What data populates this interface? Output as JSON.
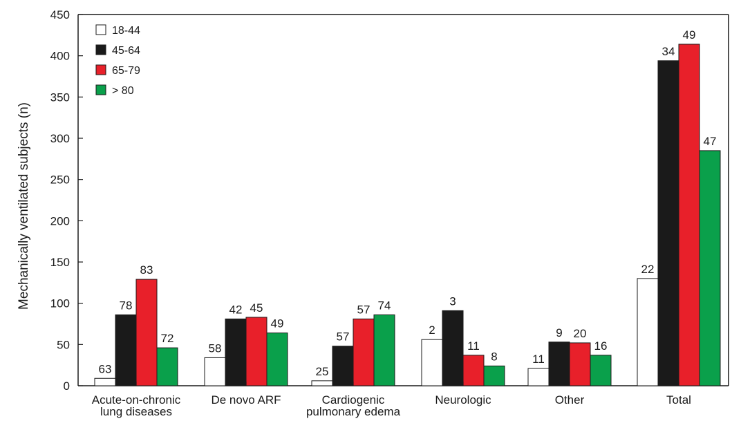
{
  "chart_data": {
    "type": "bar",
    "title": "",
    "xlabel": "",
    "ylabel": "Mechanically ventilated subjects (n)",
    "ylim": [
      0,
      450
    ],
    "yticks": [
      0,
      50,
      100,
      150,
      200,
      250,
      300,
      350,
      400,
      450
    ],
    "grid": false,
    "legend_position": "top-left",
    "categories": [
      [
        "Acute-on-chronic",
        "lung diseases"
      ],
      [
        "De novo ARF"
      ],
      [
        "Cardiogenic",
        "pulmonary edema"
      ],
      [
        "Neurologic"
      ],
      [
        "Other"
      ],
      [
        "Total"
      ]
    ],
    "series": [
      {
        "name": "18-44",
        "color": "#ffffff",
        "values": [
          9,
          34,
          6,
          56,
          21,
          130
        ],
        "labels": [
          "63",
          "58",
          "25",
          "2",
          "11",
          "22"
        ]
      },
      {
        "name": "45-64",
        "color": "#1a1a1a",
        "values": [
          86,
          81,
          48,
          91,
          53,
          394
        ],
        "labels": [
          "78",
          "42",
          "57",
          "3",
          "9",
          "34"
        ]
      },
      {
        "name": "65-79",
        "color": "#e8202a",
        "values": [
          129,
          83,
          81,
          37,
          52,
          414
        ],
        "labels": [
          "83",
          "45",
          "57",
          "11",
          "20",
          "49"
        ]
      },
      {
        "name": "> 80",
        "color": "#0aa04b",
        "values": [
          46,
          64,
          86,
          24,
          37,
          285
        ],
        "labels": [
          "72",
          "49",
          "74",
          "8",
          "16",
          "47"
        ]
      }
    ]
  }
}
